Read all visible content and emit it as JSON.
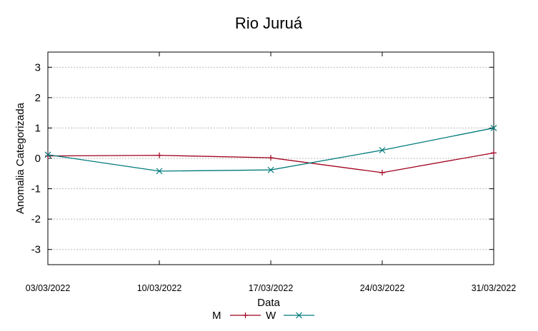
{
  "chart_data": {
    "type": "line",
    "title": "Rio Juruá",
    "xlabel": "Data",
    "ylabel": "Anomalia Categorizada",
    "x": [
      "03/03/2022",
      "10/03/2022",
      "17/03/2022",
      "24/03/2022",
      "31/03/2022"
    ],
    "ylim": [
      -3.5,
      3.5
    ],
    "yticks": [
      "3",
      "2",
      "1",
      "0",
      "-1",
      "-2",
      "-3"
    ],
    "ytick_values": [
      3,
      2,
      1,
      0,
      -1,
      -2,
      -3
    ],
    "grid": true,
    "legend_position": "bottom-center",
    "series": [
      {
        "name": "M",
        "color": "#a0001e",
        "marker": "plus",
        "values": [
          0.08,
          0.1,
          0.02,
          -0.47,
          0.18
        ]
      },
      {
        "name": "W",
        "color": "#007a7a",
        "marker": "cross",
        "values": [
          0.12,
          -0.42,
          -0.38,
          0.27,
          1.0
        ]
      }
    ]
  }
}
